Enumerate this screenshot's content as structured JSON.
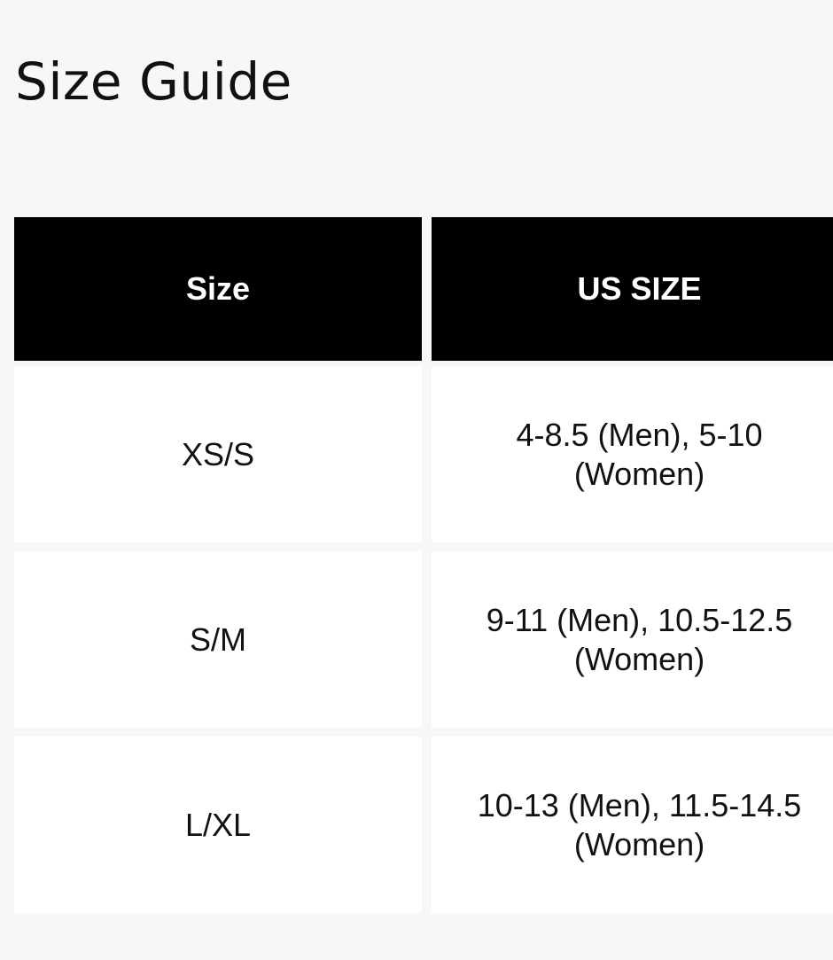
{
  "title": "Size Guide",
  "table": {
    "headers": [
      "Size",
      "US SIZE"
    ],
    "rows": [
      [
        "XS/S",
        "4-8.5 (Men), 5-10 (Women)"
      ],
      [
        "S/M",
        "9-11 (Men), 10.5-12.5 (Women)"
      ],
      [
        "L/XL",
        "10-13 (Men), 11.5-14.5 (Women)"
      ]
    ]
  }
}
